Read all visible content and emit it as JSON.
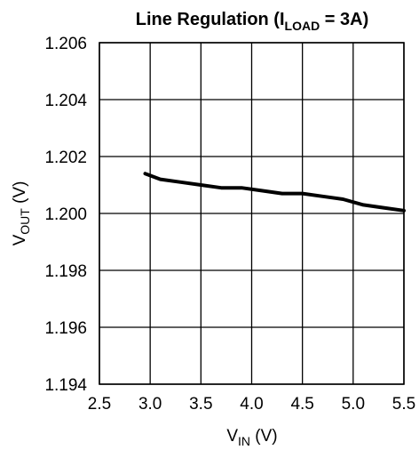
{
  "chart_data": {
    "type": "line",
    "title": {
      "prefix": "Line Regulation (I",
      "subscript": "LOAD",
      "suffix": " = 3A)"
    },
    "xlabel": {
      "main": "V",
      "subscript": "IN",
      "unit": " (V)"
    },
    "ylabel": {
      "main": "V",
      "subscript": "OUT",
      "unit": " (V)"
    },
    "xlim": [
      2.5,
      5.5
    ],
    "ylim": [
      1.194,
      1.206
    ],
    "x_ticks": [
      "2.5",
      "3.0",
      "3.5",
      "4.0",
      "4.5",
      "5.0",
      "5.5"
    ],
    "y_ticks": [
      "1.194",
      "1.196",
      "1.198",
      "1.200",
      "1.202",
      "1.204",
      "1.206"
    ],
    "grid": true,
    "series": [
      {
        "color": "#000000",
        "x": [
          2.95,
          3.1,
          3.3,
          3.5,
          3.7,
          3.9,
          4.1,
          4.3,
          4.5,
          4.7,
          4.9,
          5.1,
          5.3,
          5.5
        ],
        "y": [
          1.2014,
          1.2012,
          1.2011,
          1.201,
          1.2009,
          1.2009,
          1.2008,
          1.2007,
          1.2007,
          1.2006,
          1.2005,
          1.2003,
          1.2002,
          1.2001
        ]
      }
    ]
  }
}
